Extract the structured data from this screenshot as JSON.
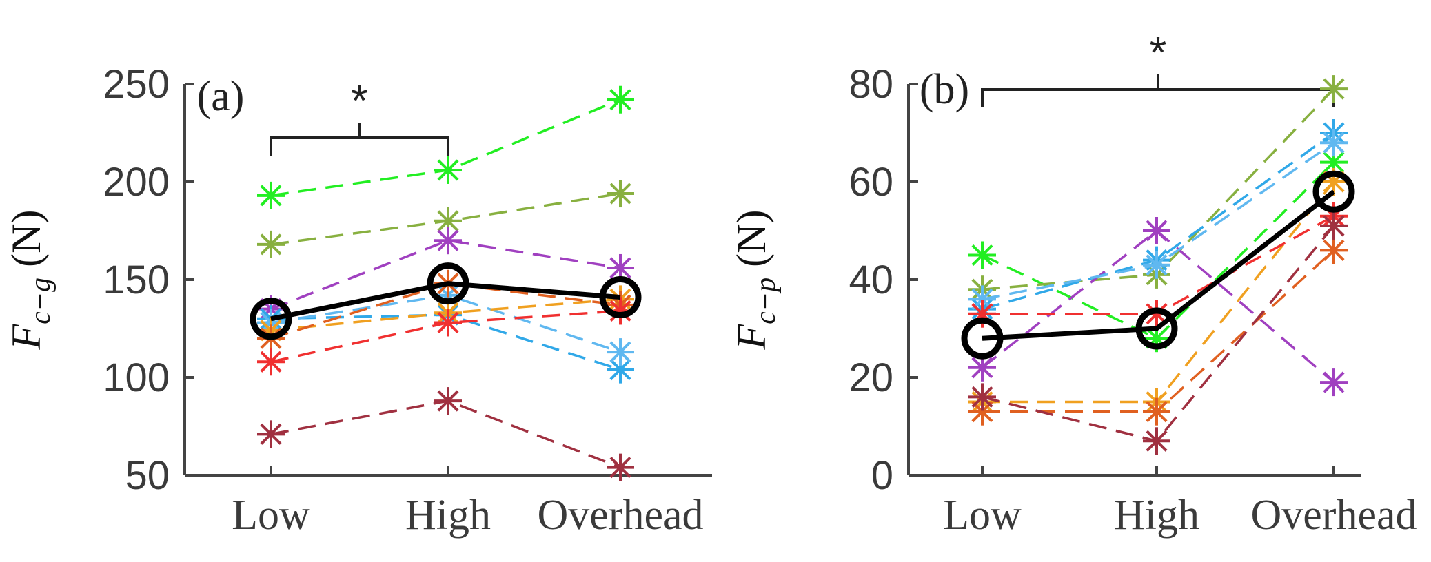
{
  "chart_data": [
    {
      "type": "line",
      "panel_label": "(a)",
      "categories": [
        "Low",
        "High",
        "Overhead"
      ],
      "ylabel": "F",
      "ylabel_sub": "c−g",
      "ylabel_unit": "(N)",
      "ylim": [
        50,
        250
      ],
      "yticks": [
        50,
        100,
        150,
        200,
        250
      ],
      "significance": {
        "from": "Low",
        "to": "High",
        "symbol": "*"
      },
      "series": [
        {
          "name": "green",
          "color": "#22ee22",
          "values": [
            193,
            206,
            242
          ]
        },
        {
          "name": "olive",
          "color": "#88b040",
          "values": [
            168,
            180,
            194
          ]
        },
        {
          "name": "purple",
          "color": "#a040c0",
          "values": [
            135,
            170,
            156
          ]
        },
        {
          "name": "blue",
          "color": "#30a8e8",
          "values": [
            130,
            132,
            104
          ]
        },
        {
          "name": "sky",
          "color": "#60b8f0",
          "values": [
            128,
            142,
            113
          ]
        },
        {
          "name": "orange",
          "color": "#f0a020",
          "values": [
            124,
            133,
            140
          ]
        },
        {
          "name": "darkorange",
          "color": "#e06020",
          "values": [
            120,
            148,
            137
          ]
        },
        {
          "name": "red",
          "color": "#f03030",
          "values": [
            108,
            128,
            134
          ]
        },
        {
          "name": "maroon",
          "color": "#a03040",
          "values": [
            71,
            88,
            54
          ]
        }
      ],
      "mean": {
        "name": "mean",
        "color": "#000000",
        "values": [
          130,
          148,
          141
        ]
      }
    },
    {
      "type": "line",
      "panel_label": "(b)",
      "categories": [
        "Low",
        "High",
        "Overhead"
      ],
      "ylabel": "F",
      "ylabel_sub": "c−p",
      "ylabel_unit": "(N)",
      "ylim": [
        0,
        80
      ],
      "yticks": [
        0,
        20,
        40,
        60,
        80
      ],
      "significance": {
        "from": "Low",
        "to": "Overhead",
        "symbol": "*"
      },
      "series": [
        {
          "name": "green",
          "color": "#22ee22",
          "values": [
            45,
            28,
            64
          ]
        },
        {
          "name": "olive",
          "color": "#88b040",
          "values": [
            38,
            41,
            79
          ]
        },
        {
          "name": "purple",
          "color": "#a040c0",
          "values": [
            22,
            50,
            19
          ]
        },
        {
          "name": "blue",
          "color": "#30a8e8",
          "values": [
            34,
            44,
            70
          ]
        },
        {
          "name": "sky",
          "color": "#60b8f0",
          "values": [
            36,
            43,
            68
          ]
        },
        {
          "name": "orange",
          "color": "#f0a020",
          "values": [
            15,
            15,
            60
          ]
        },
        {
          "name": "darkorange",
          "color": "#e06020",
          "values": [
            13,
            13,
            46
          ]
        },
        {
          "name": "red",
          "color": "#f03030",
          "values": [
            33,
            33,
            53
          ]
        },
        {
          "name": "maroon",
          "color": "#a03040",
          "values": [
            16,
            7,
            51
          ]
        }
      ],
      "mean": {
        "name": "mean",
        "color": "#000000",
        "values": [
          28,
          30,
          58
        ]
      }
    }
  ]
}
